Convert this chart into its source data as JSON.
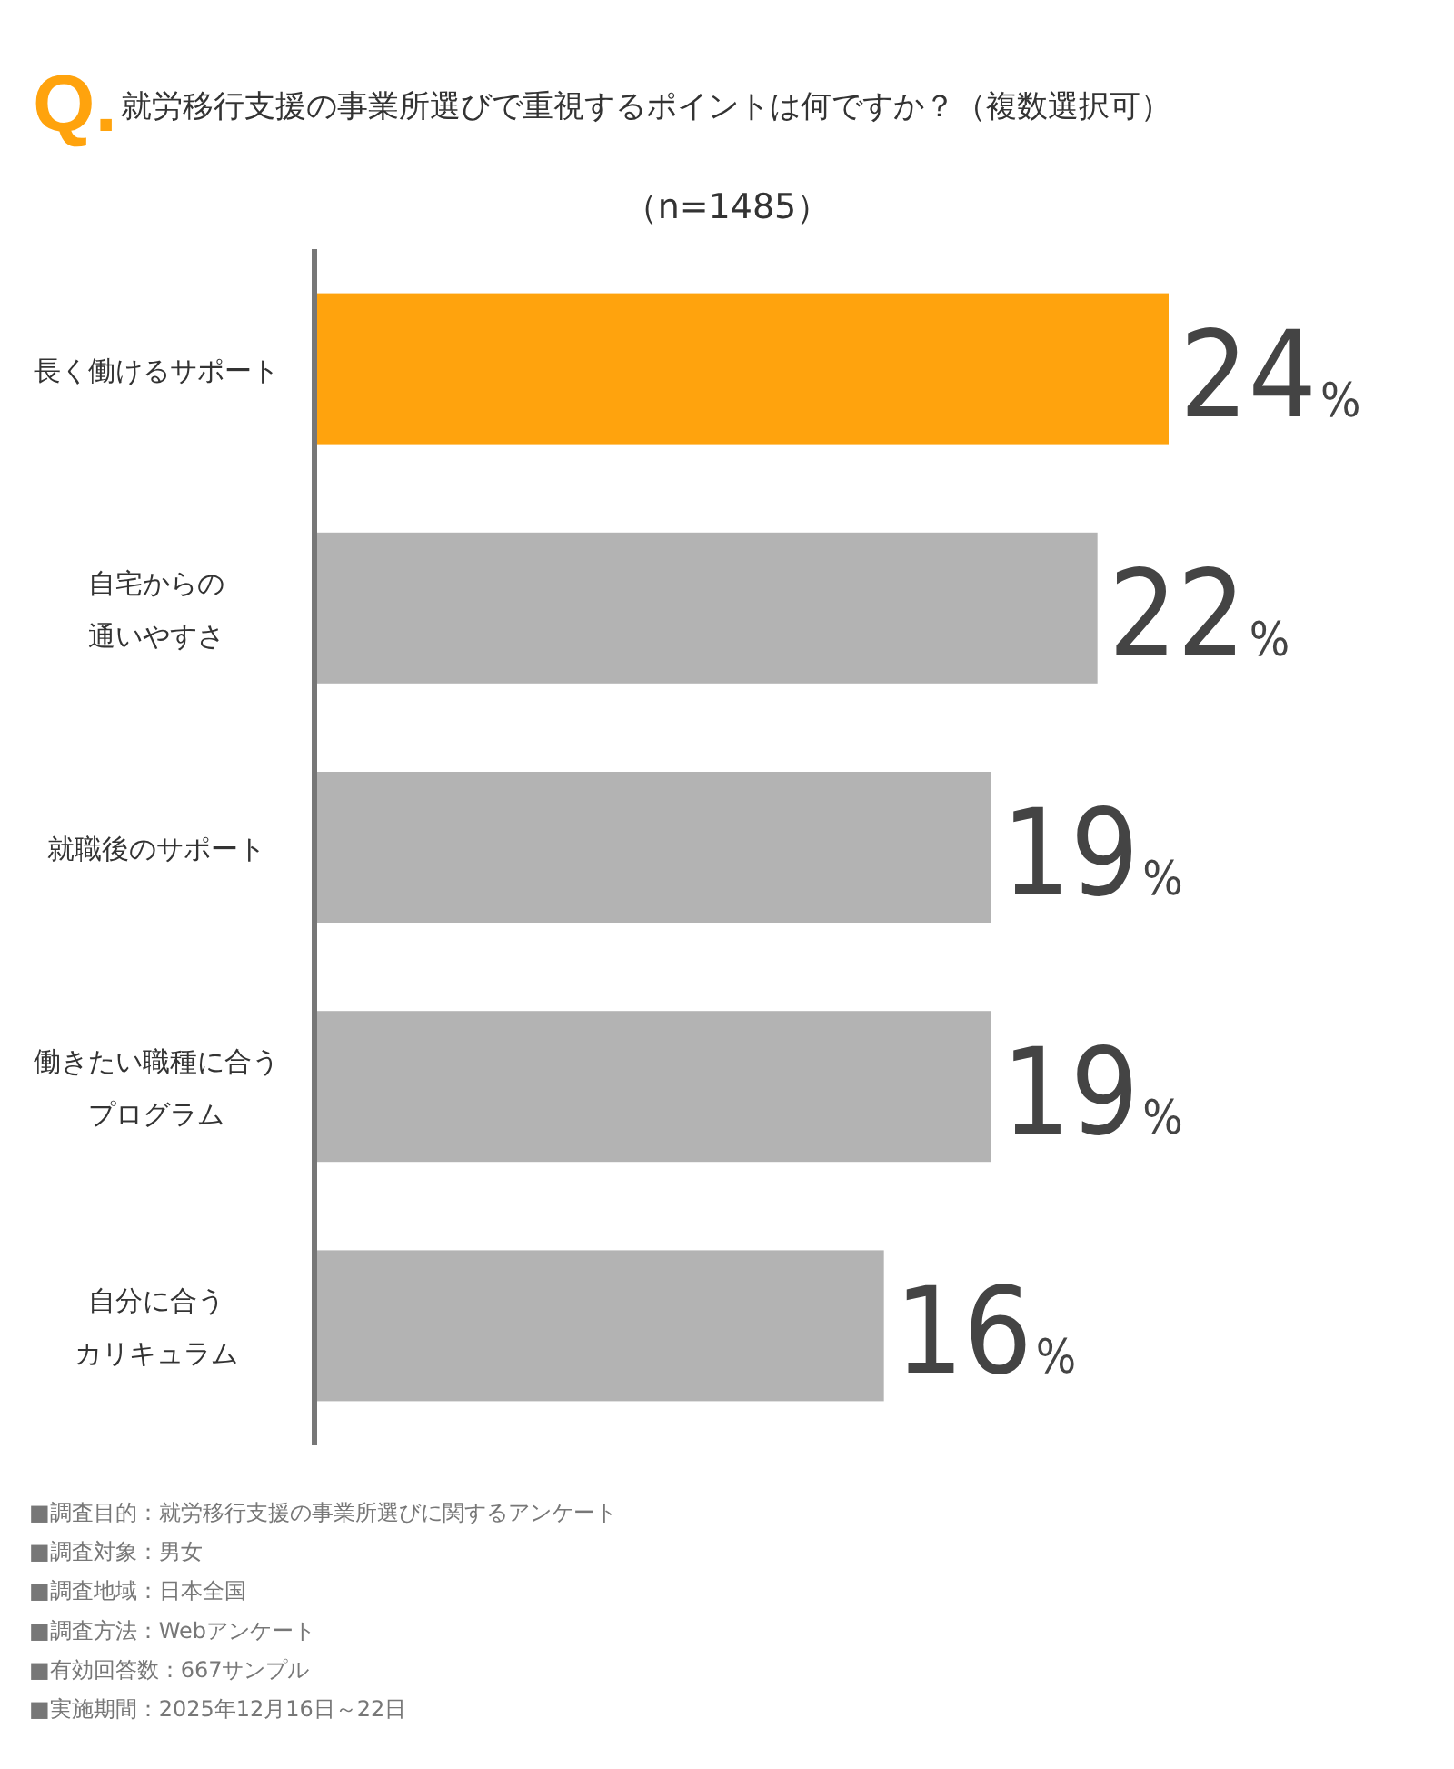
{
  "chart_data": {
    "type": "bar",
    "orientation": "horizontal",
    "title": "Q.就労移行支援の事業所選びで重視するポイントは何ですか？（複数選択可）",
    "subtitle": "（n=1485）",
    "categories": [
      "長く働けるサポート",
      "自宅からの通いやすさ",
      "就職後のサポート",
      "働きたい職種に合うプログラム",
      "自分に合うカリキュラム"
    ],
    "values": [
      24,
      22,
      19,
      19,
      16
    ],
    "colors": [
      "#ffa30d",
      "#b3b3b3",
      "#b3b3b3",
      "#b3b3b3",
      "#b3b3b3"
    ],
    "value_labels": [
      "24%",
      "22%",
      "19%",
      "19%",
      "16%"
    ],
    "annotations": [
      "■調査目的：就労移行支援の事業所選びに関するアンケート",
      "■調査対象：男女",
      "■調査地域：日本全国",
      "■調査方法：Webアンケート",
      "■有効回答数：667サンプル",
      "■実施期間：2025年12月16日～22日"
    ]
  }
}
